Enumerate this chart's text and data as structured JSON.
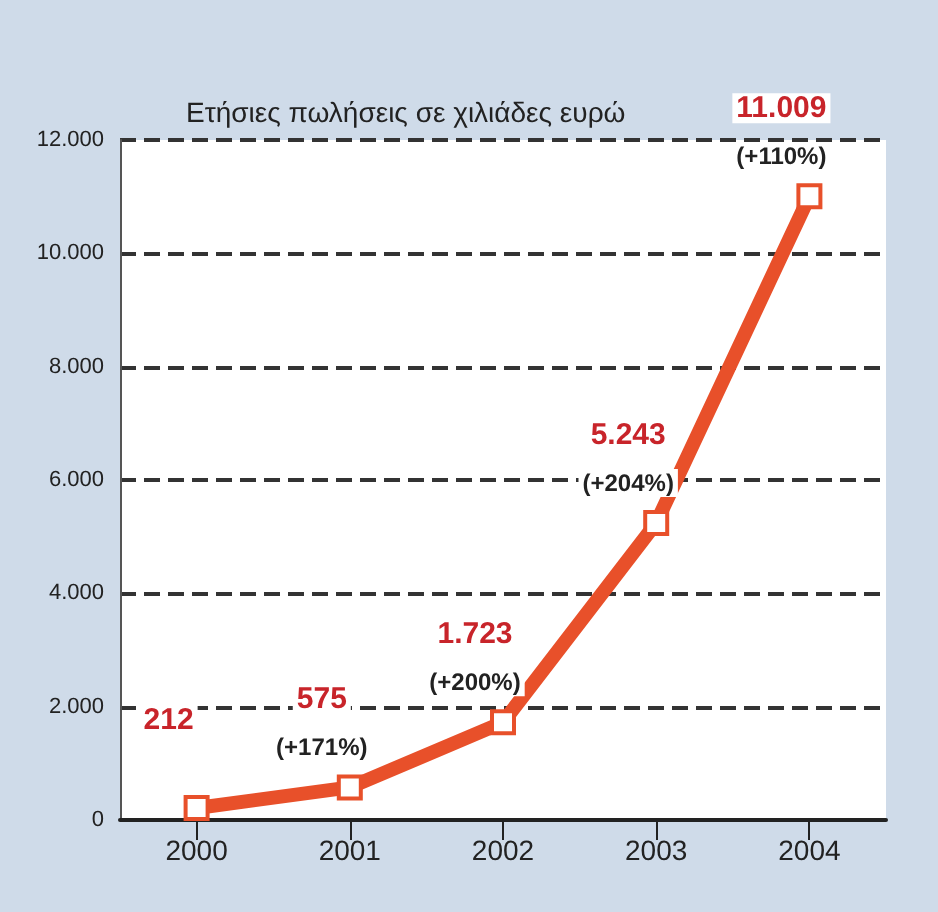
{
  "chart_data": {
    "type": "line",
    "title": "Ετήσιες πωλήσεις σε χιλιάδες ευρώ",
    "categories": [
      "2000",
      "2001",
      "2002",
      "2003",
      "2004"
    ],
    "series": [
      {
        "color": "#e8502a",
        "values": [
          212,
          575,
          1723,
          5243,
          11009
        ],
        "value_labels": [
          "212",
          "575",
          "1.723",
          "5.243",
          "11.009"
        ]
      }
    ],
    "annotations": [
      {
        "text": "(+171%)",
        "x": "2001",
        "y": 575
      },
      {
        "text": "(+200%)",
        "x": "2002",
        "y": 1723
      },
      {
        "text": "(+204%)",
        "x": "2003",
        "y": 5243
      },
      {
        "text": "(+110%)",
        "x": "2004",
        "y": 11009
      }
    ],
    "ylim": [
      0,
      12000
    ],
    "yticks": [
      {
        "value": 0,
        "label": "0"
      },
      {
        "value": 2000,
        "label": "2.000"
      },
      {
        "value": 4000,
        "label": "4.000"
      },
      {
        "value": 6000,
        "label": "6.000"
      },
      {
        "value": 8000,
        "label": "8.000"
      },
      {
        "value": 10000,
        "label": "10.000"
      },
      {
        "value": 12000,
        "label": "12.000"
      }
    ],
    "grid": "y",
    "marker": "square",
    "line_style": "solid"
  }
}
